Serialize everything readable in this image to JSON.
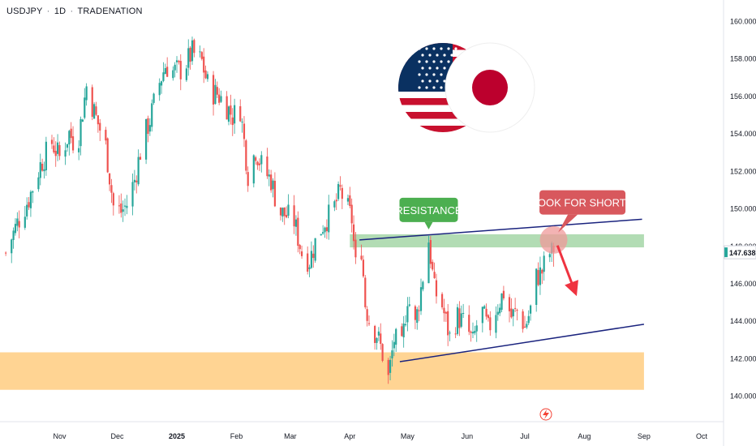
{
  "header": {
    "symbol": "USDJPY",
    "interval": "1D",
    "author": "TRADENATION"
  },
  "chart_data": {
    "type": "candlestick",
    "ylim": [
      138.6,
      161.1
    ],
    "y_ticks": [
      140,
      142,
      144,
      146,
      148,
      150,
      152,
      154,
      156,
      158,
      160
    ],
    "y_tick_labels": [
      "140.000",
      "142.000",
      "144.000",
      "146.000",
      "148.000",
      "150.000",
      "152.000",
      "154.000",
      "156.000",
      "158.000",
      "160.000"
    ],
    "x_ticks": [
      "Nov",
      "Dec",
      "2025",
      "Feb",
      "Mar",
      "Apr",
      "May",
      "Jun",
      "Jul",
      "Aug",
      "Sep",
      "Oct"
    ],
    "x_tick_dates": [
      "2024-11-01",
      "2024-12-01",
      "2025-01-01",
      "2025-02-01",
      "2025-03-01",
      "2025-04-01",
      "2025-05-01",
      "2025-06-01",
      "2025-07-01",
      "2025-08-01",
      "2025-09-01",
      "2025-10-01"
    ],
    "last_price": 147.638,
    "last_price_label": "147.638",
    "colors": {
      "up": "#26a69a",
      "down": "#ef5350",
      "last_price": "#26a69a"
    },
    "price_path": [
      {
        "date": "2024-10-04",
        "close": 147.6
      },
      {
        "date": "2024-10-10",
        "close": 149.2
      },
      {
        "date": "2024-10-16",
        "close": 150.5
      },
      {
        "date": "2024-10-22",
        "close": 152.3
      },
      {
        "date": "2024-10-28",
        "close": 153.5
      },
      {
        "date": "2024-11-01",
        "close": 152.7
      },
      {
        "date": "2024-11-06",
        "close": 154.0
      },
      {
        "date": "2024-11-10",
        "close": 153.2
      },
      {
        "date": "2024-11-15",
        "close": 156.5
      },
      {
        "date": "2024-11-20",
        "close": 154.8
      },
      {
        "date": "2024-11-25",
        "close": 153.3
      },
      {
        "date": "2024-11-29",
        "close": 150.1
      },
      {
        "date": "2024-12-03",
        "close": 149.8
      },
      {
        "date": "2024-12-06",
        "close": 150.2
      },
      {
        "date": "2024-12-10",
        "close": 151.5
      },
      {
        "date": "2024-12-14",
        "close": 153.5
      },
      {
        "date": "2024-12-18",
        "close": 154.7
      },
      {
        "date": "2024-12-22",
        "close": 156.4
      },
      {
        "date": "2024-12-26",
        "close": 157.6
      },
      {
        "date": "2024-12-30",
        "close": 157.3
      },
      {
        "date": "2025-01-04",
        "close": 157.4
      },
      {
        "date": "2025-01-09",
        "close": 158.3
      },
      {
        "date": "2025-01-14",
        "close": 157.8
      },
      {
        "date": "2025-01-18",
        "close": 156.2
      },
      {
        "date": "2025-01-22",
        "close": 156.1
      },
      {
        "date": "2025-01-26",
        "close": 155.6
      },
      {
        "date": "2025-01-30",
        "close": 154.9
      },
      {
        "date": "2025-02-03",
        "close": 155.3
      },
      {
        "date": "2025-02-07",
        "close": 151.8
      },
      {
        "date": "2025-02-11",
        "close": 153.1
      },
      {
        "date": "2025-02-15",
        "close": 152.0
      },
      {
        "date": "2025-02-19",
        "close": 151.5
      },
      {
        "date": "2025-02-23",
        "close": 149.8
      },
      {
        "date": "2025-02-27",
        "close": 149.6
      },
      {
        "date": "2025-03-03",
        "close": 149.3
      },
      {
        "date": "2025-03-07",
        "close": 147.6
      },
      {
        "date": "2025-03-11",
        "close": 147.2
      },
      {
        "date": "2025-03-15",
        "close": 148.5
      },
      {
        "date": "2025-03-19",
        "close": 149.3
      },
      {
        "date": "2025-03-23",
        "close": 149.8
      },
      {
        "date": "2025-03-27",
        "close": 150.9
      },
      {
        "date": "2025-03-31",
        "close": 149.9
      },
      {
        "date": "2025-04-02",
        "close": 149.4
      },
      {
        "date": "2025-04-04",
        "close": 146.9
      },
      {
        "date": "2025-04-07",
        "close": 147.9
      },
      {
        "date": "2025-04-09",
        "close": 144.9
      },
      {
        "date": "2025-04-12",
        "close": 143.6
      },
      {
        "date": "2025-04-15",
        "close": 143.3
      },
      {
        "date": "2025-04-18",
        "close": 142.2
      },
      {
        "date": "2025-04-21",
        "close": 140.9
      },
      {
        "date": "2025-04-24",
        "close": 143.0
      },
      {
        "date": "2025-04-28",
        "close": 142.5
      },
      {
        "date": "2025-05-01",
        "close": 145.3
      },
      {
        "date": "2025-05-05",
        "close": 143.7
      },
      {
        "date": "2025-05-08",
        "close": 145.7
      },
      {
        "date": "2025-05-12",
        "close": 148.3
      },
      {
        "date": "2025-05-15",
        "close": 145.6
      },
      {
        "date": "2025-05-19",
        "close": 144.8
      },
      {
        "date": "2025-05-23",
        "close": 143.1
      },
      {
        "date": "2025-05-27",
        "close": 144.2
      },
      {
        "date": "2025-05-31",
        "close": 143.8
      },
      {
        "date": "2025-06-04",
        "close": 142.8
      },
      {
        "date": "2025-06-08",
        "close": 144.7
      },
      {
        "date": "2025-06-12",
        "close": 143.5
      },
      {
        "date": "2025-06-16",
        "close": 144.6
      },
      {
        "date": "2025-06-20",
        "close": 145.5
      },
      {
        "date": "2025-06-24",
        "close": 144.2
      },
      {
        "date": "2025-06-28",
        "close": 144.6
      },
      {
        "date": "2025-07-01",
        "close": 143.6
      },
      {
        "date": "2025-07-04",
        "close": 144.6
      },
      {
        "date": "2025-07-07",
        "close": 146.3
      },
      {
        "date": "2025-07-10",
        "close": 146.6
      },
      {
        "date": "2025-07-13",
        "close": 147.6
      },
      {
        "date": "2025-07-16",
        "close": 147.6
      }
    ],
    "annotations": {
      "resistance_zone": {
        "y": [
          147.9,
          148.6
        ],
        "x": [
          "2025-04-01",
          "2025-09-01"
        ],
        "color": "#a5d6a7"
      },
      "support_zone": {
        "y": [
          140.3,
          142.3
        ],
        "x": [
          "2024-10-01",
          "2025-09-01"
        ],
        "color": "#ffcc80"
      },
      "upper_trendline": {
        "from": {
          "date": "2025-04-06",
          "price": 148.3
        },
        "to": {
          "date": "2025-08-31",
          "price": 149.4
        },
        "color": "#1a237e"
      },
      "lower_trendline": {
        "from": {
          "date": "2025-04-27",
          "price": 141.8
        },
        "to": {
          "date": "2025-09-01",
          "price": 143.8
        },
        "color": "#1a237e"
      },
      "resistance_label": {
        "text": "RESISTANCE",
        "color": "#4caf50",
        "date": "2025-05-12",
        "price": 149.9
      },
      "shorts_label": {
        "text": "LOOK FOR SHORTS",
        "color": "#d8585d",
        "date": "2025-07-31",
        "price": 150.3
      },
      "circle_marker": {
        "date": "2025-07-16",
        "price": 148.3,
        "color": "#ef9a9a"
      },
      "arrow": {
        "from": {
          "date": "2025-07-18",
          "price": 148.0
        },
        "to": {
          "date": "2025-07-28",
          "price": 145.3
        },
        "color": "#ef3340"
      }
    }
  }
}
